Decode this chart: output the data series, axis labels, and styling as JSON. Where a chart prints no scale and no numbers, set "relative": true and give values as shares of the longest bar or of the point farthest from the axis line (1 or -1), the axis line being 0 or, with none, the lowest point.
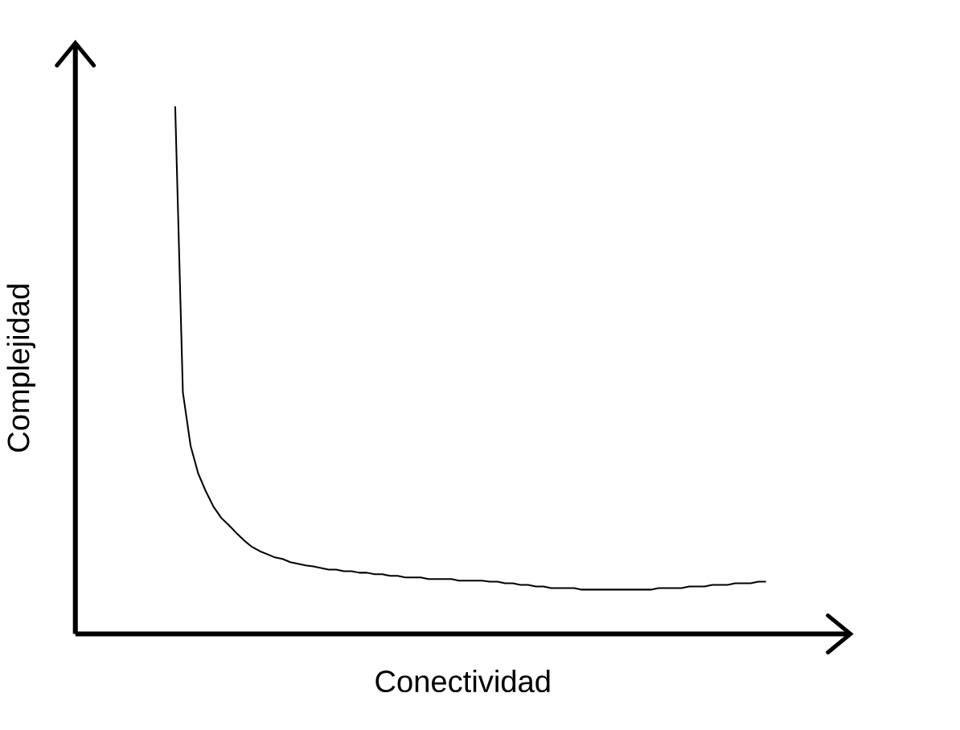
{
  "chart_data": {
    "type": "line",
    "relative": true,
    "xlabel": "Conectividad",
    "ylabel": "Complejidad",
    "marker": "none",
    "line_style": "solid",
    "categories": [
      null,
      null,
      null,
      null,
      null,
      null,
      null,
      null,
      null,
      null,
      null,
      null,
      null,
      null,
      null,
      null,
      null,
      null,
      null,
      null,
      null,
      null,
      null,
      null,
      null,
      null,
      null,
      null,
      null,
      null,
      null,
      null,
      null,
      null,
      null,
      null,
      null,
      null,
      null,
      null,
      null,
      null,
      null,
      null,
      null,
      null,
      null,
      null,
      null,
      null,
      null,
      null,
      null,
      null,
      null,
      null,
      null,
      null,
      null,
      null,
      null,
      null,
      null,
      null,
      null,
      null,
      null,
      null,
      null,
      null,
      null,
      null,
      null,
      null,
      null,
      null,
      null,
      null
    ],
    "series": [
      {
        "color": "#000000",
        "values": [
          1.0,
          0.458,
          0.357,
          0.304,
          0.27,
          0.241,
          0.22,
          0.206,
          0.191,
          0.177,
          0.165,
          0.157,
          0.151,
          0.145,
          0.142,
          0.136,
          0.133,
          0.13,
          0.128,
          0.125,
          0.122,
          0.122,
          0.119,
          0.119,
          0.116,
          0.116,
          0.113,
          0.113,
          0.11,
          0.11,
          0.107,
          0.107,
          0.107,
          0.104,
          0.104,
          0.104,
          0.104,
          0.101,
          0.101,
          0.101,
          0.101,
          0.099,
          0.099,
          0.096,
          0.096,
          0.093,
          0.093,
          0.09,
          0.09,
          0.087,
          0.087,
          0.087,
          0.087,
          0.084,
          0.084,
          0.084,
          0.084,
          0.084,
          0.084,
          0.084,
          0.084,
          0.084,
          0.084,
          0.087,
          0.087,
          0.087,
          0.087,
          0.09,
          0.09,
          0.09,
          0.093,
          0.093,
          0.093,
          0.096,
          0.096,
          0.096,
          0.099,
          0.099
        ]
      }
    ]
  }
}
